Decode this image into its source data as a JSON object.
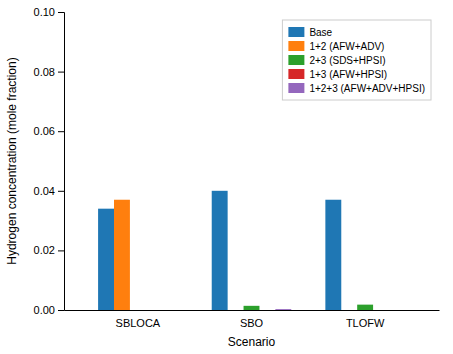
{
  "chart_data": {
    "type": "bar",
    "categories": [
      "SBLOCA",
      "SBO",
      "TLOFW"
    ],
    "series": [
      {
        "name": "Base",
        "values": [
          0.034,
          0.04,
          0.037
        ]
      },
      {
        "name": "1+2 (AFW+ADV)",
        "values": [
          0.037,
          0.0,
          0.0
        ]
      },
      {
        "name": "2+3 (SDS+HPSI)",
        "values": [
          0.0,
          0.0014,
          0.0018
        ]
      },
      {
        "name": "1+3 (AFW+HPSI)",
        "values": [
          0.0,
          0.0,
          0.0
        ]
      },
      {
        "name": "1+2+3 (AFW+ADV+HPSI)",
        "values": [
          0.0,
          0.0003,
          0.0
        ]
      }
    ],
    "x_label": "Scenario",
    "y_label": "Hydrogen concentration (mole fraction)",
    "ylim": [
      0.0,
      0.1
    ],
    "yticks": [
      {
        "value": 0.0,
        "label": "0.00"
      },
      {
        "value": 0.02,
        "label": "0.02"
      },
      {
        "value": 0.04,
        "label": "0.04"
      },
      {
        "value": 0.06,
        "label": "0.06"
      },
      {
        "value": 0.08,
        "label": "0.08"
      },
      {
        "value": 0.1,
        "label": "0.10"
      }
    ],
    "grid": false,
    "legend": "upper right"
  }
}
